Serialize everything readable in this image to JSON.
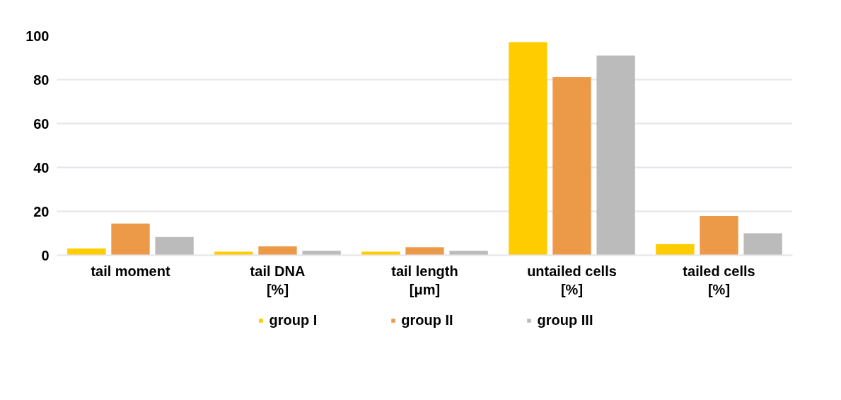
{
  "chart_data": {
    "type": "bar",
    "categories": [
      "tail moment",
      "tail DNA\n[%]",
      "tail length\n[μm]",
      "untailed cells\n[%]",
      "tailed cells\n[%]"
    ],
    "series": [
      {
        "name": "group I",
        "color": "#ffcc00",
        "values": [
          3.1,
          1.6,
          1.6,
          97.1,
          5.1
        ]
      },
      {
        "name": "group II",
        "color": "#ec9a48",
        "values": [
          14.4,
          4.0,
          3.6,
          81.1,
          17.9
        ]
      },
      {
        "name": "group III",
        "color": "#bbbbbb",
        "values": [
          8.3,
          2.0,
          2.0,
          91.0,
          10.0
        ]
      }
    ],
    "ylim": [
      0,
      100
    ],
    "yticks": [
      0,
      20,
      40,
      60,
      80,
      100
    ],
    "grid": "y",
    "legend": "bottom"
  }
}
